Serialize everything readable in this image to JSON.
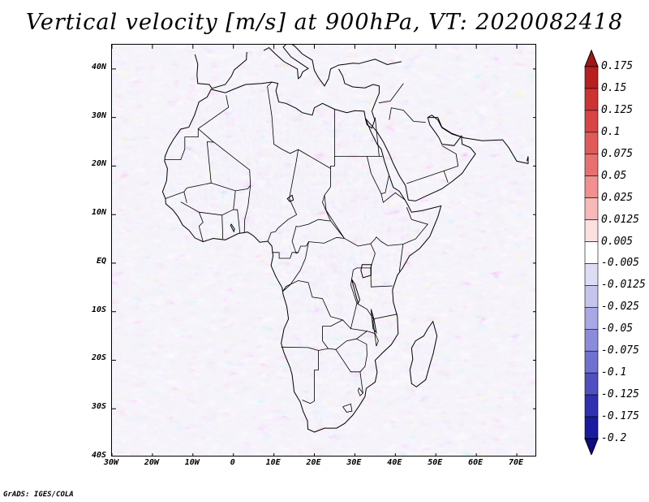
{
  "title": "Vertical velocity [m/s] at 900hPa, VT: 2020082418",
  "credit": "GrADS: IGES/COLA",
  "map": {
    "region": "Africa",
    "lat_labels": [
      "40N",
      "30N",
      "20N",
      "10N",
      "EQ",
      "10S",
      "20S",
      "30S",
      "40S"
    ],
    "lon_labels": [
      "30W",
      "20W",
      "10W",
      "0",
      "10E",
      "20E",
      "30E",
      "40E",
      "50E",
      "60E",
      "70E"
    ],
    "lat_range": [
      -40,
      45
    ],
    "lon_range": [
      -30,
      75
    ],
    "coastline_color": "#000000"
  },
  "colorbar": {
    "levels": [
      "0.175",
      "0.15",
      "0.125",
      "0.1",
      "0.075",
      "0.05",
      "0.025",
      "0.0125",
      "0.005",
      "-0.005",
      "-0.0125",
      "-0.025",
      "-0.05",
      "-0.075",
      "-0.1",
      "-0.125",
      "-0.175",
      "-0.2"
    ],
    "colors": [
      "#a01818",
      "#b82020",
      "#cc3333",
      "#d94444",
      "#e05a5a",
      "#e87070",
      "#f09090",
      "#f8b8b8",
      "#fce0e0",
      "#ffffff",
      "#dcdcf4",
      "#c4c4ec",
      "#a8a8e4",
      "#8c8cdc",
      "#7070d0",
      "#5050c0",
      "#3030b0",
      "#1a1aa0",
      "#0c0c88"
    ]
  },
  "chart_data": {
    "type": "heatmap",
    "title": "Vertical velocity [m/s] at 900hPa, VT: 2020082418",
    "variable": "Vertical velocity",
    "units": "m/s",
    "level": "900hPa",
    "valid_time": "2020082418",
    "lat_range": [
      -40,
      45
    ],
    "lon_range": [
      -30,
      75
    ],
    "contour_levels": [
      0.175,
      0.15,
      0.125,
      0.1,
      0.075,
      0.05,
      0.025,
      0.0125,
      0.005,
      -0.005,
      -0.0125,
      -0.025,
      -0.05,
      -0.075,
      -0.1,
      -0.125,
      -0.175,
      -0.2
    ]
  }
}
